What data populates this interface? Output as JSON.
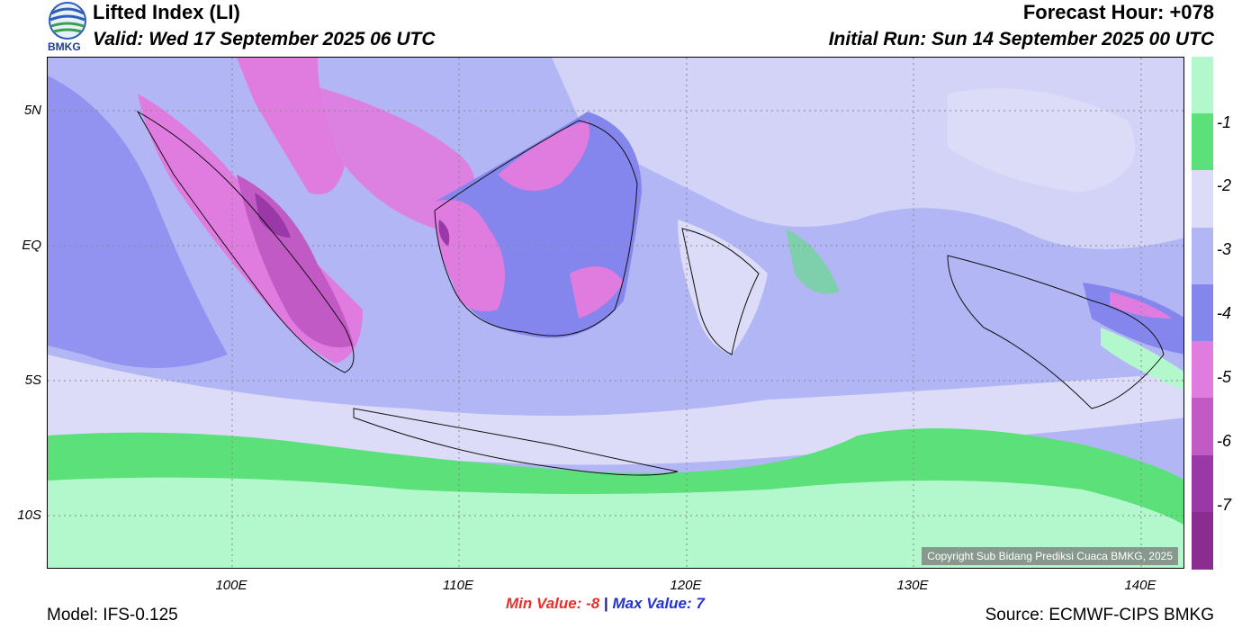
{
  "header": {
    "title": "Lifted Index (LI)",
    "valid": "Valid: Wed 17 September 2025 06 UTC",
    "forecast_hour": "Forecast Hour: +078",
    "initial_run": "Initial Run: Sun 14 September 2025 00 UTC"
  },
  "logo": {
    "text": "BMKG"
  },
  "map": {
    "lat_ticks": [
      "5N",
      "EQ",
      "5S",
      "10S"
    ],
    "lon_ticks": [
      "100E",
      "110E",
      "120E",
      "130E",
      "140E"
    ],
    "copyright": "Copyright Sub Bidang Prediksi Cuaca BMKG, 2025"
  },
  "colorbar": {
    "labels": [
      "-1",
      "-2",
      "-3",
      "-4",
      "-5",
      "-6",
      "-7"
    ],
    "colors": [
      "#b3f8cc",
      "#5be07a",
      "#dcdcf8",
      "#b2b6f4",
      "#8585ee",
      "#e07be0",
      "#c25ac6",
      "#9a38a8",
      "#8a2c90"
    ]
  },
  "stats": {
    "min_label": "Min Value:",
    "min_value": "-8",
    "separator": "|",
    "max_label": "Max Value:",
    "max_value": "7"
  },
  "footer": {
    "model": "Model: IFS-0.125",
    "source": "Source: ECMWF-CIPS BMKG"
  }
}
